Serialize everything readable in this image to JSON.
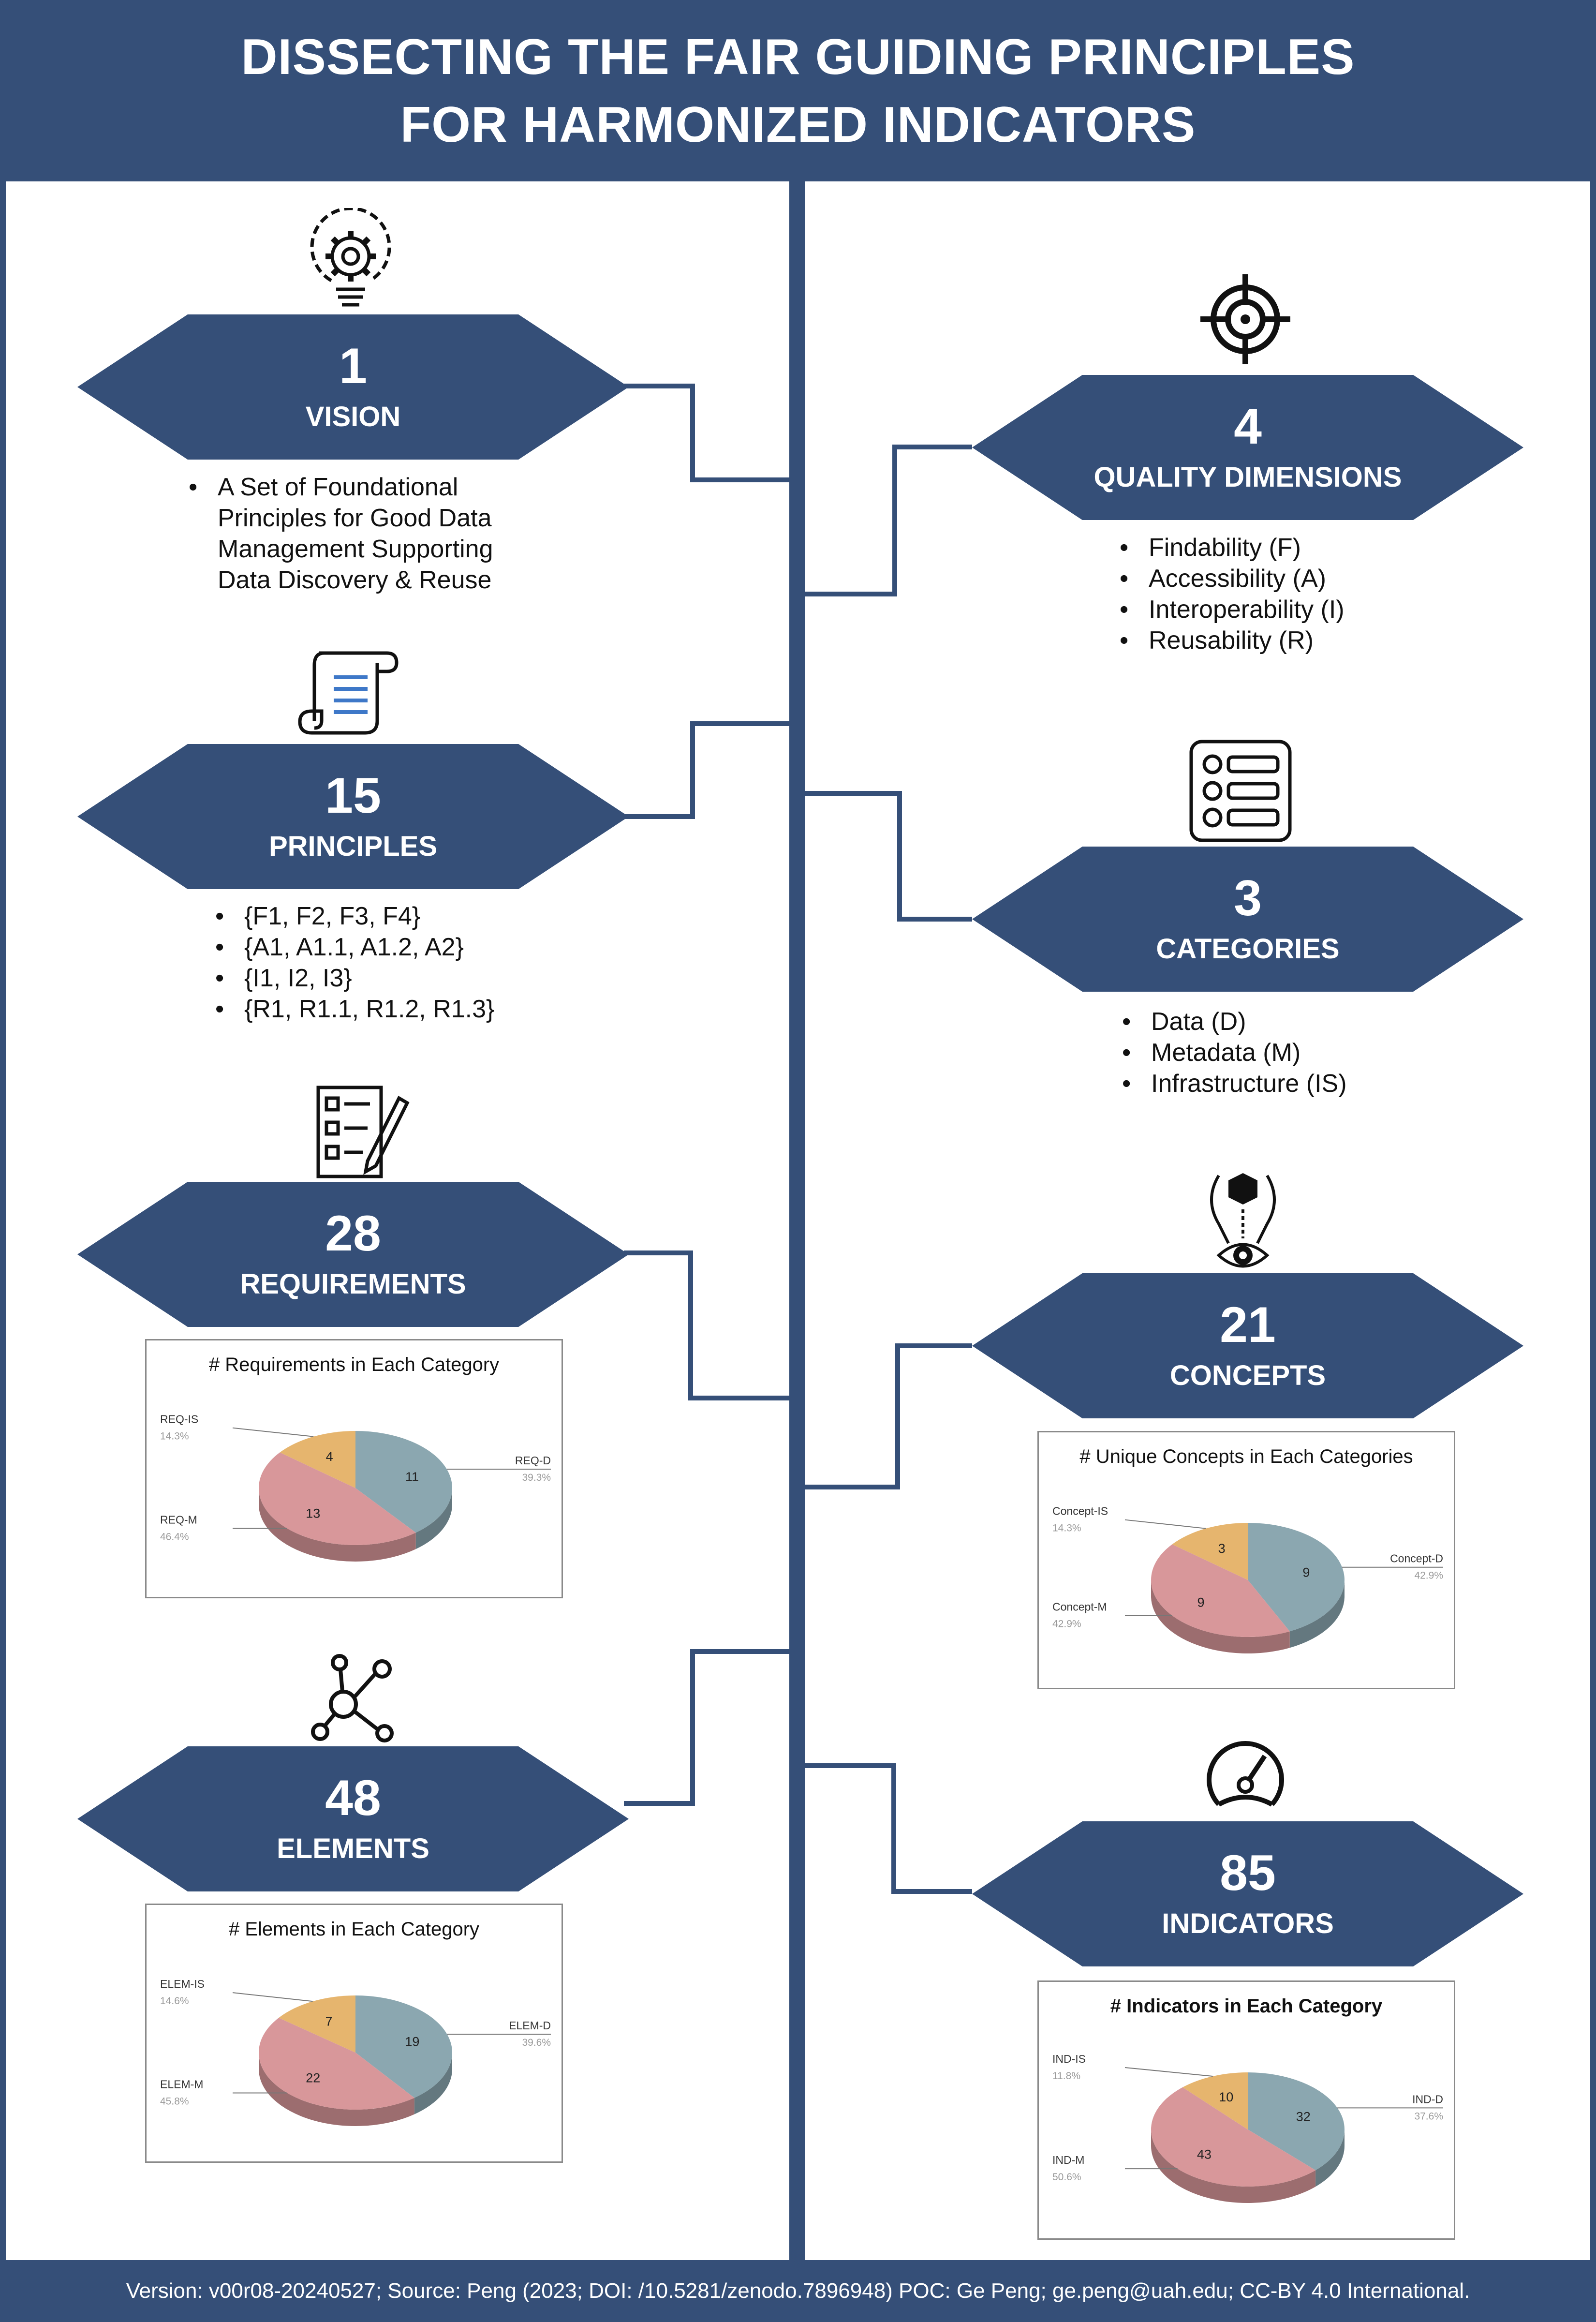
{
  "header": {
    "line1": "DISSECTING THE FAIR GUIDING PRINCIPLES",
    "line2": "FOR HARMONIZED INDICATORS"
  },
  "footer": {
    "text": "Version: v00r08-20240527; Source: Peng (2023; DOI: /10.5281/zenodo.7896948) POC: Ge Peng; ge.peng@uah.edu; CC-BY 4.0 International."
  },
  "colors": {
    "navy": "#354F78",
    "data": "#8BA7B0",
    "metadata": "#D8979A",
    "infrastructure": "#E6B56E"
  },
  "vision": {
    "num": "1",
    "label": "VISION",
    "icon": "lightbulb-gear-icon",
    "bullets": [
      "A Set of Foundational Principles for Good Data Management Supporting Data Discovery & Reuse"
    ]
  },
  "dimensions": {
    "num": "4",
    "label": "QUALITY DIMENSIONS",
    "icon": "target-icon",
    "bullets": [
      "Findability (F)",
      "Accessibility (A)",
      "Interoperability (I)",
      "Reusability (R)"
    ]
  },
  "principles": {
    "num": "15",
    "label": "PRINCIPLES",
    "icon": "scroll-icon",
    "bullets": [
      "{F1, F2, F3, F4}",
      "{A1, A1.1, A1.2, A2}",
      "{I1, I2, I3}",
      "{R1, R1.1, R1.2, R1.3}"
    ]
  },
  "categories": {
    "num": "3",
    "label": "CATEGORIES",
    "icon": "list-icon",
    "bullets": [
      "Data (D)",
      "Metadata (M)",
      "Infrastructure (IS)"
    ]
  },
  "requirements": {
    "num": "28",
    "label": "REQUIREMENTS",
    "icon": "checklist-icon"
  },
  "concepts": {
    "num": "21",
    "label": "CONCEPTS",
    "icon": "concept-eye-icon"
  },
  "elements": {
    "num": "48",
    "label": "ELEMENTS",
    "icon": "network-icon"
  },
  "indicators": {
    "num": "85",
    "label": "INDICATORS",
    "icon": "gauge-icon"
  },
  "chart_data": [
    {
      "type": "pie",
      "id": "req",
      "title": "# Requirements in Each Category",
      "slices": [
        {
          "name": "REQ-D",
          "value": 11,
          "percent": "39.3%",
          "color": "#8BA7B0"
        },
        {
          "name": "REQ-M",
          "value": 13,
          "percent": "46.4%",
          "color": "#D8979A"
        },
        {
          "name": "REQ-IS",
          "value": 4,
          "percent": "14.3%",
          "color": "#E6B56E"
        }
      ]
    },
    {
      "type": "pie",
      "id": "con",
      "title": "# Unique Concepts in Each Categories",
      "slices": [
        {
          "name": "Concept-D",
          "value": 9,
          "percent": "42.9%",
          "color": "#8BA7B0"
        },
        {
          "name": "Concept-M",
          "value": 9,
          "percent": "42.9%",
          "color": "#D8979A"
        },
        {
          "name": "Concept-IS",
          "value": 3,
          "percent": "14.3%",
          "color": "#E6B56E"
        }
      ]
    },
    {
      "type": "pie",
      "id": "ele",
      "title": "# Elements in Each Category",
      "slices": [
        {
          "name": "ELEM-D",
          "value": 19,
          "percent": "39.6%",
          "color": "#8BA7B0"
        },
        {
          "name": "ELEM-M",
          "value": 22,
          "percent": "45.8%",
          "color": "#D8979A"
        },
        {
          "name": "ELEM-IS",
          "value": 7,
          "percent": "14.6%",
          "color": "#E6B56E"
        }
      ]
    },
    {
      "type": "pie",
      "id": "ind",
      "title": "# Indicators in Each Category",
      "slices": [
        {
          "name": "IND-D",
          "value": 32,
          "percent": "37.6%",
          "color": "#8BA7B0"
        },
        {
          "name": "IND-M",
          "value": 43,
          "percent": "50.6%",
          "color": "#D8979A"
        },
        {
          "name": "IND-IS",
          "value": 10,
          "percent": "11.8%",
          "color": "#E6B56E"
        }
      ]
    }
  ]
}
